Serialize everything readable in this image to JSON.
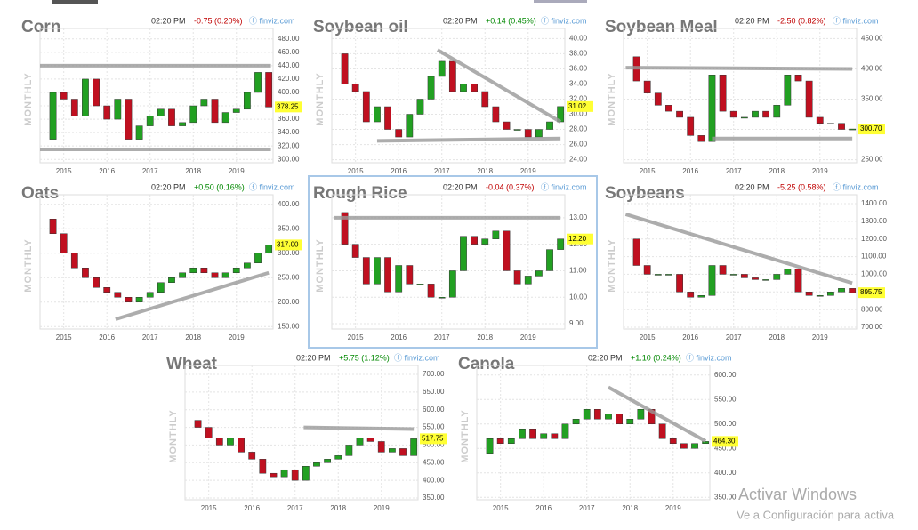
{
  "chart_data": [
    {
      "type": "candlestick",
      "title": "Corn",
      "time": "02:20 PM",
      "change": "-0.75 (0.20%)",
      "change_color": "#c00000",
      "source": "ⓕ finviz.com",
      "period": "MONTHLY",
      "price_label": "378.25",
      "grid": true,
      "colors": {
        "up": "#22a022",
        "down": "#c01020",
        "trend": "#999999",
        "highlight": "#ffff33"
      },
      "x": [
        2014.5,
        2014.75,
        2015,
        2015.25,
        2015.5,
        2015.75,
        2016,
        2016.25,
        2016.5,
        2016.75,
        2017,
        2017.25,
        2017.5,
        2017.75,
        2018,
        2018.25,
        2018.5,
        2018.75,
        2019,
        2019.25,
        2019.5,
        2019.75
      ],
      "values": [
        330,
        400,
        390,
        365,
        420,
        380,
        360,
        390,
        330,
        350,
        365,
        375,
        350,
        355,
        380,
        390,
        355,
        370,
        375,
        400,
        430,
        378.25
      ],
      "xlim": [
        2014.45,
        2019.85
      ],
      "xticks": [
        2015,
        2016,
        2017,
        2018,
        2019
      ],
      "ylim": [
        295,
        485
      ],
      "yticks": [
        {
          "value": 300,
          "label": "300.00"
        },
        {
          "value": 320,
          "label": "320.00"
        },
        {
          "value": 340,
          "label": "340.00"
        },
        {
          "value": 360,
          "label": "360.00"
        },
        {
          "value": 380,
          "label": "380.00"
        },
        {
          "value": 400,
          "label": "400.00"
        },
        {
          "value": 420,
          "label": "420.00"
        },
        {
          "value": 440,
          "label": "440.00"
        },
        {
          "value": 460,
          "label": "460.00"
        },
        {
          "value": 480,
          "label": "480.00"
        }
      ],
      "trendlines": [
        [
          [
            2014.45,
            440
          ],
          [
            2019.8,
            440
          ]
        ],
        [
          [
            2014.45,
            315
          ],
          [
            2019.8,
            315
          ]
        ]
      ]
    },
    {
      "type": "candlestick",
      "title": "Soybean oil",
      "time": "02:20 PM",
      "change": "+0.14 (0.45%)",
      "change_color": "#008800",
      "source": "ⓕ finviz.com",
      "period": "MONTHLY",
      "price_label": "31.02",
      "grid": true,
      "colors": {
        "up": "#22a022",
        "down": "#c01020",
        "trend": "#999999",
        "highlight": "#ffff33"
      },
      "x": [
        2014.5,
        2014.75,
        2015,
        2015.25,
        2015.5,
        2015.75,
        2016,
        2016.25,
        2016.5,
        2016.75,
        2017,
        2017.25,
        2017.5,
        2017.75,
        2018,
        2018.25,
        2018.5,
        2018.75,
        2019,
        2019.25,
        2019.5,
        2019.75
      ],
      "values": [
        38,
        34,
        33,
        29,
        31,
        28,
        27,
        30,
        32,
        35,
        37,
        33,
        34,
        33,
        31,
        29,
        28,
        28,
        27,
        28,
        29,
        31.02
      ],
      "xlim": [
        2014.45,
        2019.85
      ],
      "xticks": [
        2015,
        2016,
        2017,
        2018,
        2019
      ],
      "ylim": [
        23.6,
        40.4
      ],
      "yticks": [
        {
          "value": 24,
          "label": "24.00"
        },
        {
          "value": 26,
          "label": "26.00"
        },
        {
          "value": 28,
          "label": "28.00"
        },
        {
          "value": 30,
          "label": "30.00"
        },
        {
          "value": 32,
          "label": "32.00"
        },
        {
          "value": 34,
          "label": "34.00"
        },
        {
          "value": 36,
          "label": "36.00"
        },
        {
          "value": 38,
          "label": "38.00"
        },
        {
          "value": 40,
          "label": "40.00"
        }
      ],
      "trendlines": [
        [
          [
            2016.9,
            38.5
          ],
          [
            2019.75,
            29
          ]
        ],
        [
          [
            2015.5,
            26.5
          ],
          [
            2019.75,
            26.8
          ]
        ]
      ]
    },
    {
      "type": "candlestick",
      "title": "Soybean Meal",
      "time": "02:20 PM",
      "change": "-2.50 (0.82%)",
      "change_color": "#c00000",
      "source": "ⓕ finviz.com",
      "period": "MONTHLY",
      "price_label": "300.70",
      "grid": true,
      "colors": {
        "up": "#22a022",
        "down": "#c01020",
        "trend": "#999999",
        "highlight": "#ffff33"
      },
      "x": [
        2014.5,
        2014.75,
        2015,
        2015.25,
        2015.5,
        2015.75,
        2016,
        2016.25,
        2016.5,
        2016.75,
        2017,
        2017.25,
        2017.5,
        2017.75,
        2018,
        2018.25,
        2018.5,
        2018.75,
        2019,
        2019.25,
        2019.5,
        2019.75
      ],
      "values": [
        420,
        380,
        360,
        340,
        330,
        320,
        290,
        280,
        390,
        330,
        320,
        320,
        330,
        320,
        340,
        390,
        380,
        320,
        310,
        310,
        300,
        300.7
      ],
      "xlim": [
        2014.45,
        2019.85
      ],
      "xticks": [
        2015,
        2016,
        2017,
        2018,
        2019
      ],
      "ylim": [
        245,
        455
      ],
      "yticks": [
        {
          "value": 250,
          "label": "250.00"
        },
        {
          "value": 300,
          "label": "300.00"
        },
        {
          "value": 350,
          "label": "350.00"
        },
        {
          "value": 400,
          "label": "400.00"
        },
        {
          "value": 450,
          "label": "450.00"
        }
      ],
      "trendlines": [
        [
          [
            2014.5,
            402
          ],
          [
            2019.75,
            400
          ]
        ],
        [
          [
            2016.5,
            285
          ],
          [
            2019.75,
            285
          ]
        ]
      ]
    },
    {
      "type": "candlestick",
      "title": "Oats",
      "time": "02:20 PM",
      "change": "+0.50 (0.16%)",
      "change_color": "#008800",
      "source": "ⓕ finviz.com",
      "period": "MONTHLY",
      "price_label": "317.00",
      "grid": true,
      "colors": {
        "up": "#22a022",
        "down": "#c01020",
        "trend": "#999999",
        "highlight": "#ffff33"
      },
      "x": [
        2014.5,
        2014.75,
        2015,
        2015.25,
        2015.5,
        2015.75,
        2016,
        2016.25,
        2016.5,
        2016.75,
        2017,
        2017.25,
        2017.5,
        2017.75,
        2018,
        2018.25,
        2018.5,
        2018.75,
        2019,
        2019.25,
        2019.5,
        2019.75
      ],
      "values": [
        370,
        340,
        300,
        270,
        250,
        230,
        220,
        210,
        200,
        210,
        220,
        240,
        250,
        260,
        270,
        260,
        250,
        260,
        270,
        280,
        300,
        317
      ],
      "xlim": [
        2014.45,
        2019.85
      ],
      "xticks": [
        2015,
        2016,
        2017,
        2018,
        2019
      ],
      "ylim": [
        145,
        405
      ],
      "yticks": [
        {
          "value": 150,
          "label": "150.00"
        },
        {
          "value": 200,
          "label": "200.00"
        },
        {
          "value": 250,
          "label": "250.00"
        },
        {
          "value": 300,
          "label": "300.00"
        },
        {
          "value": 350,
          "label": "350.00"
        },
        {
          "value": 400,
          "label": "400.00"
        }
      ],
      "trendlines": [
        [
          [
            2016.2,
            165
          ],
          [
            2019.75,
            260
          ]
        ]
      ]
    },
    {
      "type": "candlestick",
      "title": "Rough Rice",
      "time": "02:20 PM",
      "change": "-0.04 (0.37%)",
      "change_color": "#c00000",
      "source": "ⓕ finviz.com",
      "period": "MONTHLY",
      "price_label": "12.20",
      "grid": true,
      "selected": true,
      "colors": {
        "up": "#22a022",
        "down": "#c01020",
        "trend": "#999999",
        "highlight": "#ffff33",
        "border": "#a8c8e8"
      },
      "x": [
        2014.5,
        2014.75,
        2015,
        2015.25,
        2015.5,
        2015.75,
        2016,
        2016.25,
        2016.5,
        2016.75,
        2017,
        2017.25,
        2017.5,
        2017.75,
        2018,
        2018.25,
        2018.5,
        2018.75,
        2019,
        2019.25,
        2019.5,
        2019.75
      ],
      "values": [
        13.2,
        12,
        11.5,
        10.5,
        11.5,
        10.2,
        11.2,
        10.5,
        10.5,
        10,
        10,
        11,
        12.3,
        12,
        12.2,
        12.5,
        11,
        10.5,
        10.8,
        11,
        11.8,
        12.2
      ],
      "xlim": [
        2014.45,
        2019.85
      ],
      "xticks": [
        2015,
        2016,
        2017,
        2018,
        2019
      ],
      "ylim": [
        8.8,
        13.6
      ],
      "yticks": [
        {
          "value": 9,
          "label": "9.00"
        },
        {
          "value": 10,
          "label": "10.00"
        },
        {
          "value": 11,
          "label": "11.00"
        },
        {
          "value": 12,
          "label": "12.00"
        },
        {
          "value": 13,
          "label": "13.00"
        }
      ],
      "trendlines": [
        [
          [
            2014.5,
            13
          ],
          [
            2019.75,
            13
          ]
        ]
      ]
    },
    {
      "type": "candlestick",
      "title": "Soybeans",
      "time": "02:20 PM",
      "change": "-5.25 (0.58%)",
      "change_color": "#c00000",
      "source": "ⓕ finviz.com",
      "period": "MONTHLY",
      "price_label": "895.75",
      "grid": true,
      "colors": {
        "up": "#22a022",
        "down": "#c01020",
        "trend": "#999999",
        "highlight": "#ffff33"
      },
      "x": [
        2014.5,
        2014.75,
        2015,
        2015.25,
        2015.5,
        2015.75,
        2016,
        2016.25,
        2016.5,
        2016.75,
        2017,
        2017.25,
        2017.5,
        2017.75,
        2018,
        2018.25,
        2018.5,
        2018.75,
        2019,
        2019.25,
        2019.5,
        2019.75
      ],
      "values": [
        1200,
        1050,
        1000,
        1000,
        1000,
        900,
        870,
        880,
        1050,
        1000,
        1000,
        980,
        970,
        970,
        1000,
        1030,
        900,
        880,
        880,
        900,
        920,
        895.75
      ],
      "xlim": [
        2014.45,
        2019.85
      ],
      "xticks": [
        2015,
        2016,
        2017,
        2018,
        2019
      ],
      "ylim": [
        690,
        1410
      ],
      "yticks": [
        {
          "value": 700,
          "label": "700.00"
        },
        {
          "value": 800,
          "label": "800.00"
        },
        {
          "value": 900,
          "label": "900.00"
        },
        {
          "value": 1000,
          "label": "1000.00"
        },
        {
          "value": 1100,
          "label": "1100.00"
        },
        {
          "value": 1200,
          "label": "1200.00"
        },
        {
          "value": 1300,
          "label": "1300.00"
        },
        {
          "value": 1400,
          "label": "1400.00"
        }
      ],
      "trendlines": [
        [
          [
            2014.5,
            1340
          ],
          [
            2019.75,
            950
          ]
        ]
      ]
    },
    {
      "type": "candlestick",
      "title": "Wheat",
      "time": "02:20 PM",
      "change": "+5.75 (1.12%)",
      "change_color": "#008800",
      "source": "ⓕ finviz.com",
      "period": "MONTHLY",
      "price_label": "517.75",
      "grid": true,
      "colors": {
        "up": "#22a022",
        "down": "#c01020",
        "trend": "#999999",
        "highlight": "#ffff33"
      },
      "x": [
        2014.5,
        2014.75,
        2015,
        2015.25,
        2015.5,
        2015.75,
        2016,
        2016.25,
        2016.5,
        2016.75,
        2017,
        2017.25,
        2017.5,
        2017.75,
        2018,
        2018.25,
        2018.5,
        2018.75,
        2019,
        2019.25,
        2019.5,
        2019.75
      ],
      "values": [
        570,
        550,
        520,
        500,
        520,
        480,
        460,
        420,
        410,
        430,
        400,
        440,
        450,
        460,
        470,
        500,
        520,
        510,
        480,
        490,
        470,
        517.75
      ],
      "xlim": [
        2014.45,
        2019.85
      ],
      "xticks": [
        2015,
        2016,
        2017,
        2018,
        2019
      ],
      "ylim": [
        345,
        705
      ],
      "yticks": [
        {
          "value": 350,
          "label": "350.00"
        },
        {
          "value": 400,
          "label": "400.00"
        },
        {
          "value": 450,
          "label": "450.00"
        },
        {
          "value": 500,
          "label": "500.00"
        },
        {
          "value": 550,
          "label": "550.00"
        },
        {
          "value": 600,
          "label": "600.00"
        },
        {
          "value": 650,
          "label": "650.00"
        },
        {
          "value": 700,
          "label": "700.00"
        }
      ],
      "trendlines": [
        [
          [
            2017.2,
            550
          ],
          [
            2019.75,
            545
          ]
        ]
      ]
    },
    {
      "type": "candlestick",
      "title": "Canola",
      "time": "02:20 PM",
      "change": "+1.10 (0.24%)",
      "change_color": "#008800",
      "source": "ⓕ finviz.com",
      "period": "MONTHLY",
      "price_label": "464.30",
      "grid": true,
      "colors": {
        "up": "#22a022",
        "down": "#c01020",
        "trend": "#999999",
        "highlight": "#ffff33"
      },
      "x": [
        2014.5,
        2014.75,
        2015,
        2015.25,
        2015.5,
        2015.75,
        2016,
        2016.25,
        2016.5,
        2016.75,
        2017,
        2017.25,
        2017.5,
        2017.75,
        2018,
        2018.25,
        2018.5,
        2018.75,
        2019,
        2019.25,
        2019.5,
        2019.75
      ],
      "values": [
        440,
        470,
        460,
        470,
        490,
        470,
        480,
        470,
        500,
        510,
        530,
        510,
        520,
        500,
        510,
        530,
        500,
        470,
        460,
        450,
        460,
        464.3
      ],
      "xlim": [
        2014.45,
        2019.85
      ],
      "xticks": [
        2015,
        2016,
        2017,
        2018,
        2019
      ],
      "ylim": [
        345,
        605
      ],
      "yticks": [
        {
          "value": 350,
          "label": "350.00"
        },
        {
          "value": 400,
          "label": "400.00"
        },
        {
          "value": 450,
          "label": "450.00"
        },
        {
          "value": 500,
          "label": "500.00"
        },
        {
          "value": 550,
          "label": "550.00"
        },
        {
          "value": 600,
          "label": "600.00"
        }
      ],
      "trendlines": [
        [
          [
            2017.5,
            575
          ],
          [
            2019.75,
            465
          ]
        ]
      ]
    }
  ],
  "watermark": {
    "title": "Activar Windows",
    "subtitle": "Ve a Configuración para activa"
  }
}
